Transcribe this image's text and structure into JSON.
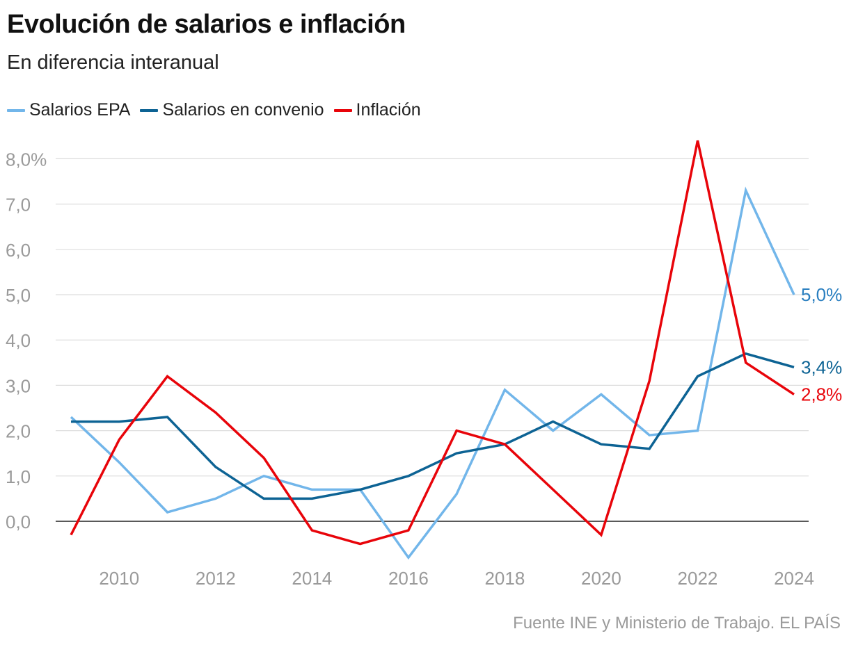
{
  "header": {
    "title": "Evolución de salarios e inflación",
    "subtitle": "En diferencia interanual"
  },
  "footer": {
    "source": "Fuente INE y Ministerio de Trabajo. EL PAÍS"
  },
  "chart_data": {
    "type": "line",
    "title": "Evolución de salarios e inflación",
    "subtitle": "En diferencia interanual",
    "x": [
      2009,
      2010,
      2011,
      2012,
      2013,
      2014,
      2015,
      2016,
      2017,
      2018,
      2019,
      2020,
      2021,
      2022,
      2023,
      2024
    ],
    "x_ticks": [
      "2010",
      "2012",
      "2014",
      "2016",
      "2018",
      "2020",
      "2022",
      "2024"
    ],
    "y_ticks": [
      "0,0",
      "1,0",
      "2,0",
      "3,0",
      "4,0",
      "5,0",
      "6,0",
      "7,0",
      "8,0%"
    ],
    "ylim": [
      -0.8,
      8.4
    ],
    "grid": true,
    "legend_position": "top-left",
    "series": [
      {
        "name": "Salarios EPA",
        "color": "#72b6ea",
        "values": [
          2.3,
          1.3,
          0.2,
          0.5,
          1.0,
          0.7,
          0.7,
          -0.8,
          0.6,
          2.9,
          2.0,
          2.8,
          1.9,
          2.0,
          7.3,
          5.0
        ],
        "end_label": "5,0%",
        "end_label_color": "#2a7fc0"
      },
      {
        "name": "Salarios en convenio",
        "color": "#0d6394",
        "values": [
          2.2,
          2.2,
          2.3,
          1.2,
          0.5,
          0.5,
          0.7,
          1.0,
          1.5,
          1.7,
          2.2,
          1.7,
          1.6,
          3.2,
          3.7,
          3.4
        ],
        "end_label": "3,4%",
        "end_label_color": "#0d6394"
      },
      {
        "name": "Inflación",
        "color": "#e8040a",
        "values": [
          -0.3,
          1.8,
          3.2,
          2.4,
          1.4,
          -0.2,
          -0.5,
          -0.2,
          2.0,
          1.7,
          0.7,
          -0.3,
          3.1,
          8.4,
          3.5,
          2.8
        ],
        "end_label": "2,8%",
        "end_label_color": "#e8040a"
      }
    ]
  }
}
